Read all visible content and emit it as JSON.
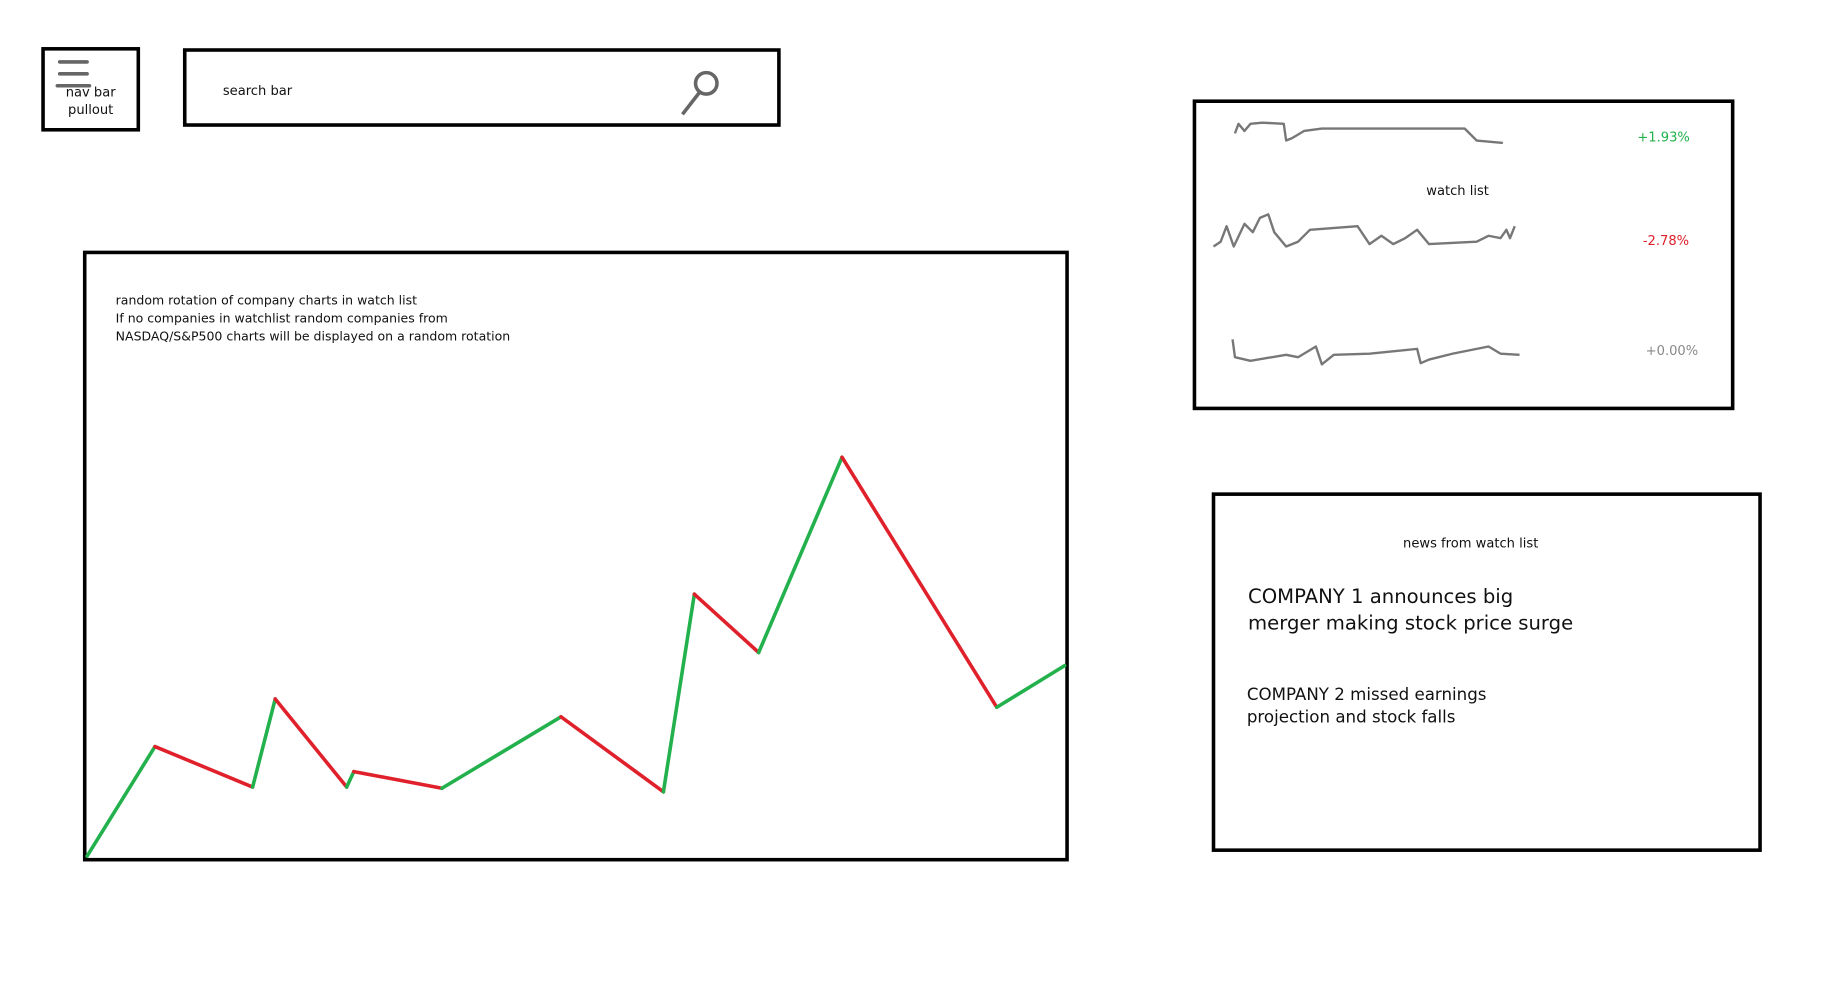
{
  "nav": {
    "label": [
      "nav bar",
      "pullout"
    ]
  },
  "search": {
    "placeholder": "search bar"
  },
  "main_chart": {
    "description": [
      "random rotation of company charts in watch list",
      "If no companies in watchlist random companies from",
      "NASDAQ/S&P500 charts will be displayed on a random rotation"
    ]
  },
  "watch_list": {
    "title": "watch list",
    "changes": [
      "+1.93%",
      "-2.78%",
      "+0.00%"
    ]
  },
  "news": {
    "title": "news from watch list",
    "items": [
      [
        "COMPANY 1 announces big",
        "merger making stock price surge"
      ],
      [
        "COMPANY 2 missed earnings",
        "projection and stock falls"
      ]
    ]
  }
}
